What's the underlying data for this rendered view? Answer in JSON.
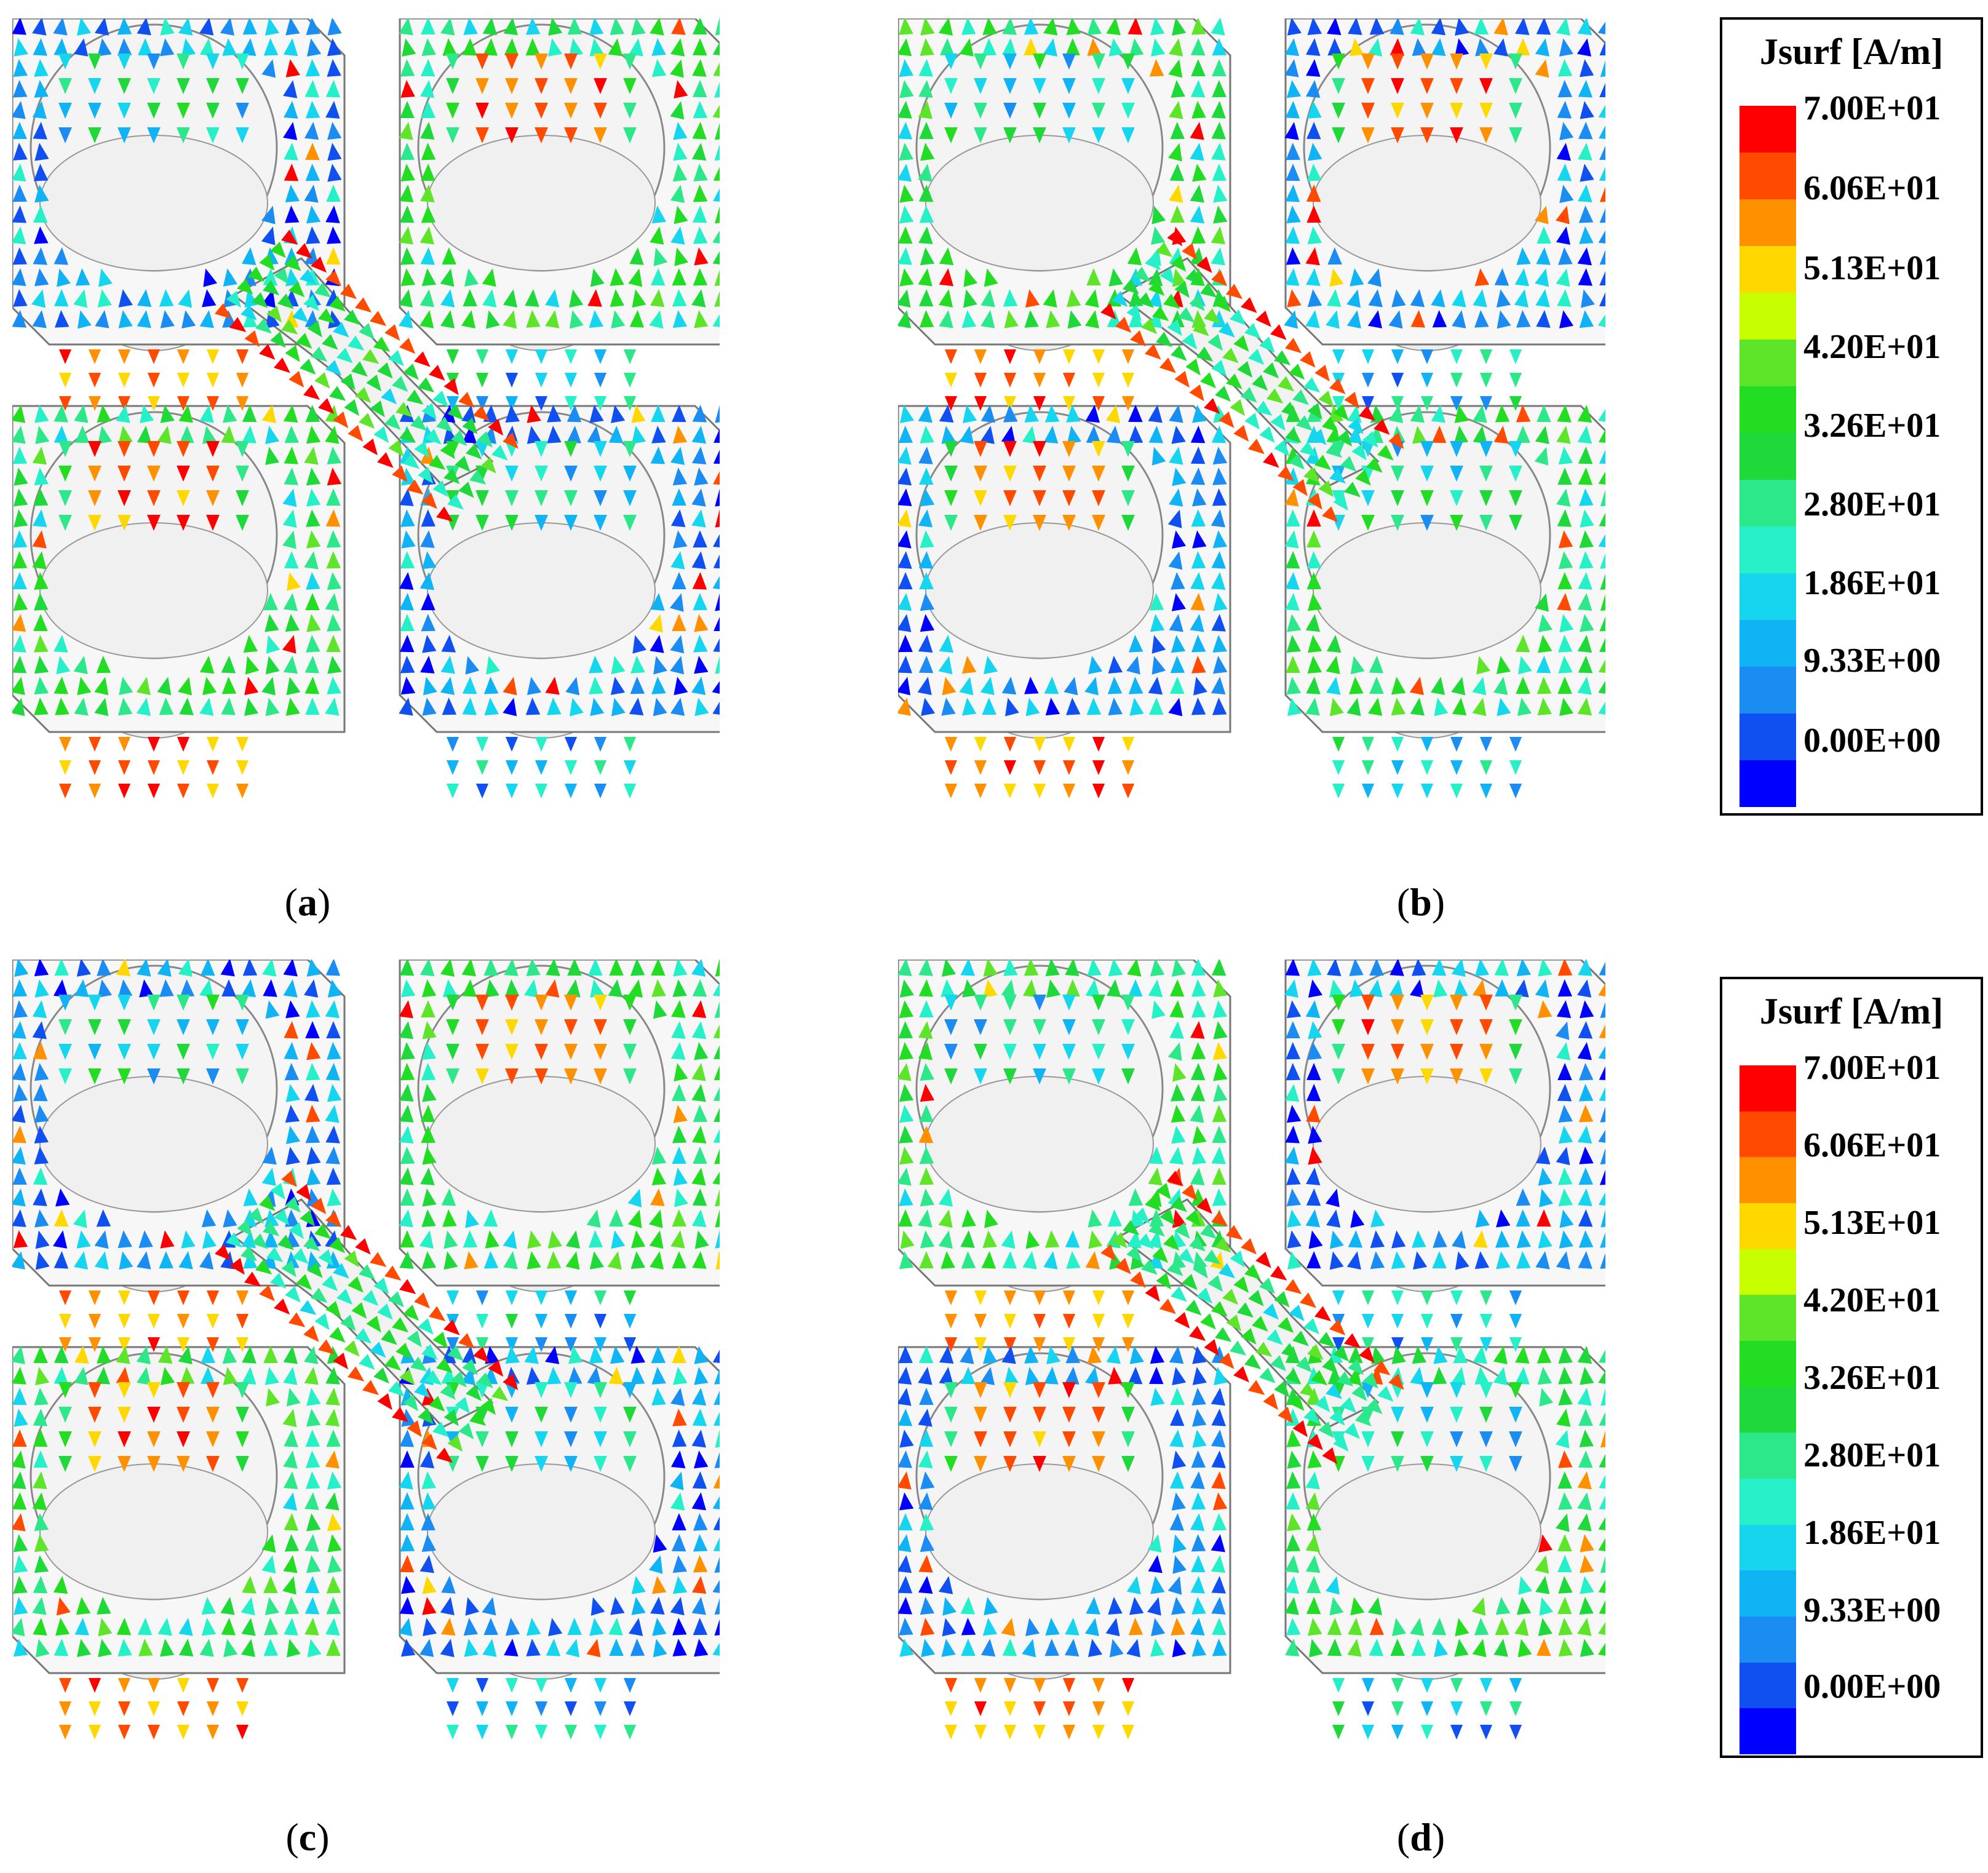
{
  "figure": {
    "panels": [
      {
        "id": "a",
        "caption": "a"
      },
      {
        "id": "b",
        "caption": "b"
      },
      {
        "id": "c",
        "caption": "c"
      },
      {
        "id": "d",
        "caption": "d"
      }
    ]
  },
  "legends": [
    {
      "title": "Jsurf [A/m]",
      "labels": [
        "7.00E+01",
        "6.06E+01",
        "5.13E+01",
        "4.20E+01",
        "3.26E+01",
        "2.80E+01",
        "1.86E+01",
        "9.33E+00",
        "0.00E+00"
      ]
    },
    {
      "title": "Jsurf [A/m]",
      "labels": [
        "7.00E+01",
        "6.06E+01",
        "5.13E+01",
        "4.20E+01",
        "3.26E+01",
        "2.80E+01",
        "1.86E+01",
        "9.33E+00",
        "0.00E+00"
      ]
    }
  ],
  "colorscale": [
    "#ff0000",
    "#ff4a00",
    "#ff9000",
    "#ffd800",
    "#c8ff00",
    "#5ee52a",
    "#22dd22",
    "#1fd93a",
    "#2ce88a",
    "#26f0c8",
    "#16d6ef",
    "#10b4f5",
    "#1a8cf2",
    "#1050f0",
    "#0000ff"
  ]
}
